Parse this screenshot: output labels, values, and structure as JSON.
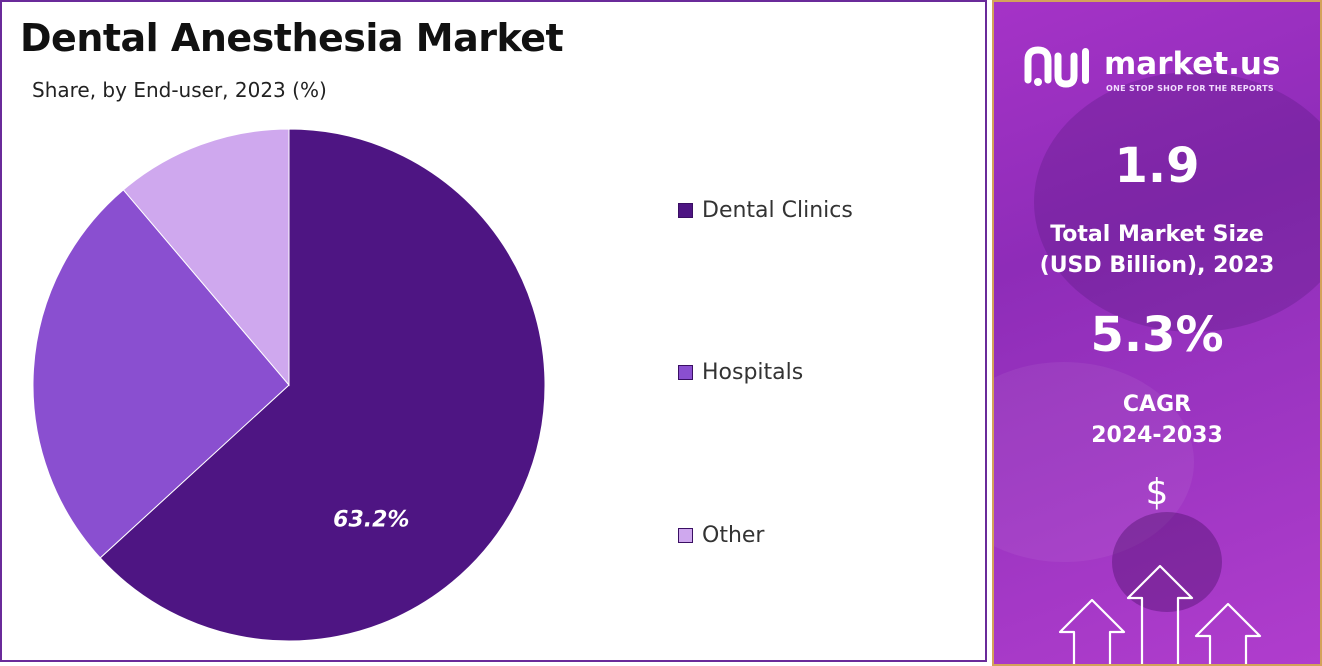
{
  "chart_panel": {
    "title": "Dental Anesthesia Market",
    "subtitle": "Share, by End-user, 2023 (%)"
  },
  "chart_data": {
    "type": "pie",
    "title": "Dental Anesthesia Market",
    "subtitle": "Share, by End-user, 2023 (%)",
    "categories": [
      "Dental Clinics",
      "Hospitals",
      "Other"
    ],
    "values": [
      63.2,
      25.6,
      11.2
    ],
    "colors": [
      "#4e1583",
      "#8a4fd0",
      "#cfa8ee"
    ],
    "data_labels": [
      "63.2%",
      "",
      ""
    ],
    "legend_position": "right"
  },
  "side_panel": {
    "brand": {
      "name": "market.us",
      "tagline": "ONE STOP SHOP FOR THE REPORTS",
      "logo_icon": "market-us-logo"
    },
    "market_size": {
      "value": "1.9",
      "label_line1": "Total Market Size",
      "label_line2": "(USD Billion), 2023"
    },
    "cagr": {
      "value": "5.3%",
      "label_line1": "CAGR",
      "label_line2": "2024-2033"
    },
    "dollar_icon": "$",
    "growth_icon": "arrows-up-icon"
  }
}
